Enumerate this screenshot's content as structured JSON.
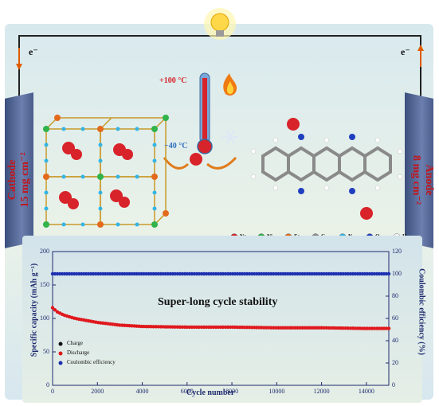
{
  "cathode": {
    "name": "Cathode",
    "loading": "15 mg cm⁻²"
  },
  "anode": {
    "name": "Anode",
    "loading": "8 mg cm⁻²"
  },
  "electron_left": "e⁻",
  "electron_right": "e⁻",
  "temperature": {
    "high": "+100 °C",
    "low": "−40 °C"
  },
  "elements": [
    {
      "symbol": "Na",
      "color": "#d8232a"
    },
    {
      "symbol": "Ni",
      "color": "#2fb34a"
    },
    {
      "symbol": "Fe",
      "color": "#e36a1c"
    },
    {
      "symbol": "C",
      "color": "#8a8a8a"
    },
    {
      "symbol": "N",
      "color": "#33b5e5"
    },
    {
      "symbol": "O",
      "color": "#1f3fbf"
    },
    {
      "symbol": "H",
      "color": "#f2f2f2"
    }
  ],
  "chart_data": {
    "type": "scatter",
    "title": "Super-long cycle stability",
    "xlabel": "Cycle number",
    "ylabel": "Specific capacity (mAh g⁻¹)",
    "y2label": "Coulombic efficiency (%)",
    "xlim": [
      0,
      15000
    ],
    "ylim": [
      0,
      200
    ],
    "y2lim": [
      0,
      120
    ],
    "xticks": [
      "0",
      "2000",
      "4000",
      "6000",
      "8000",
      "10000",
      "12000",
      "14000"
    ],
    "yticks": [
      "0",
      "50",
      "100",
      "150",
      "200"
    ],
    "y2ticks": [
      "0",
      "20",
      "40",
      "60",
      "80",
      "100",
      "120"
    ],
    "legend_position": "bottom-left",
    "series": [
      {
        "name": "Charge",
        "color": "#111111",
        "x": [
          0,
          200,
          500,
          1000,
          2000,
          3000,
          4000,
          6000,
          8000,
          10000,
          12000,
          14000,
          15000
        ],
        "y": [
          116,
          110,
          105,
          100,
          94,
          90,
          88,
          87,
          87,
          86,
          86,
          85,
          85
        ]
      },
      {
        "name": "Discharge",
        "color": "#e0181d",
        "x": [
          0,
          200,
          500,
          1000,
          2000,
          3000,
          4000,
          6000,
          8000,
          10000,
          12000,
          14000,
          15000
        ],
        "y": [
          116,
          110,
          105,
          100,
          94,
          90,
          88,
          87,
          87,
          86,
          86,
          85,
          85
        ]
      },
      {
        "name": "Coulombic efficiency",
        "color": "#1c2fb0",
        "axis": "right",
        "x": [
          0,
          15000
        ],
        "y": [
          100,
          100
        ]
      }
    ]
  }
}
